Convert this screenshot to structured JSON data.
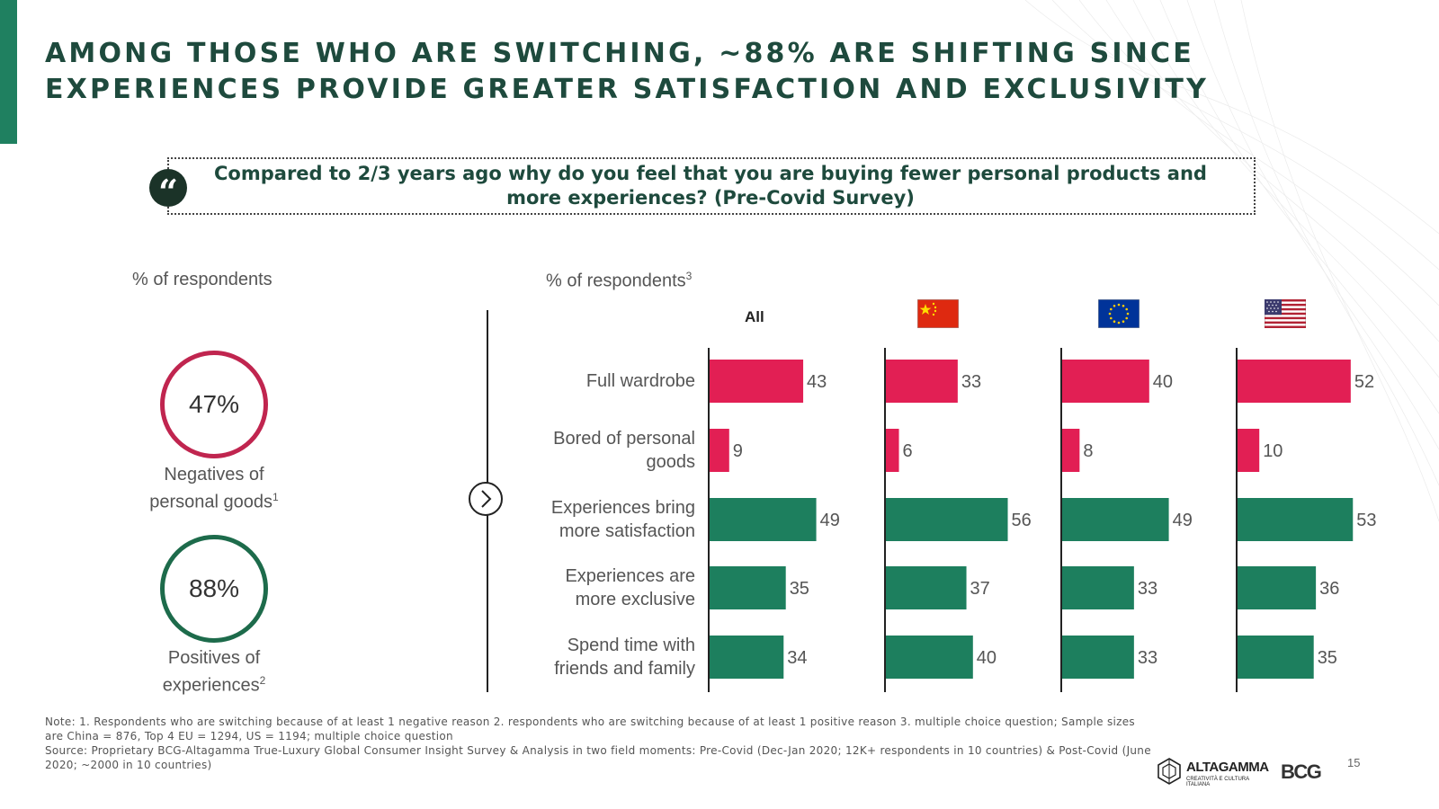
{
  "slide": {
    "title": "AMONG THOSE WHO ARE SWITCHING, ~88% ARE SHIFTING SINCE EXPERIENCES PROVIDE GREATER SATISFACTION AND EXCLUSIVITY",
    "question": "Compared to 2/3 years ago why do you feel that you are buying fewer personal products and more experiences? (Pre-Covid Survey)",
    "quote_glyph": "“",
    "page_number": "15"
  },
  "left_panel": {
    "label": "% of respondents",
    "negatives": {
      "value": "47%",
      "caption_line1": "Negatives of",
      "caption_line2": "personal goods",
      "footnote": "1",
      "color": "#c0254f"
    },
    "positives": {
      "value": "88%",
      "caption_line1": "Positives of",
      "caption_line2": "experiences",
      "footnote": "2",
      "color": "#1d6b4b"
    }
  },
  "right_panel": {
    "label": "% of respondents",
    "label_footnote": "3"
  },
  "chart_data": {
    "type": "bar",
    "orientation": "horizontal",
    "categories": [
      "Full wardrobe",
      "Bored of personal goods",
      "Experiences bring more satisfaction",
      "Experiences are more exclusive",
      "Spend time with friends and family"
    ],
    "category_lines": [
      [
        "Full wardrobe"
      ],
      [
        "Bored of personal",
        "goods"
      ],
      [
        "Experiences bring",
        "more satisfaction"
      ],
      [
        "Experiences are",
        "more exclusive"
      ],
      [
        "Spend time with",
        "friends and family"
      ]
    ],
    "groups": [
      {
        "label": "All",
        "header": "text",
        "values": [
          43,
          9,
          49,
          35,
          34
        ]
      },
      {
        "header": "china-flag-icon",
        "values": [
          33,
          6,
          56,
          37,
          40
        ]
      },
      {
        "header": "eu-flag-icon",
        "values": [
          40,
          8,
          49,
          33,
          33
        ]
      },
      {
        "header": "us-flag-icon",
        "values": [
          52,
          10,
          53,
          36,
          35
        ]
      }
    ],
    "bar_colors": [
      "#e21f54",
      "#e21f54",
      "#1d7f5e",
      "#1d7f5e",
      "#1d7f5e"
    ],
    "xlim": [
      0,
      60
    ],
    "data_labels": true,
    "grid": false
  },
  "notes": {
    "line1": "Note: 1. Respondents who are switching because of at least 1 negative reason 2. respondents who are switching because of at least 1 positive reason 3. multiple choice question; Sample sizes are China = 876, Top 4 EU = 1294, US = 1194; multiple choice question",
    "line2": "Source: Proprietary BCG-Altagamma True-Luxury Global Consumer Insight Survey & Analysis in two field moments: Pre-Covid (Dec-Jan 2020; 12K+ respondents in 10 countries) & Post-Covid (June 2020; ~2000 in 10 countries)"
  },
  "logos": {
    "altagamma": "ALTAGAMMA",
    "altagamma_sub": "CREATIVITÀ E CULTURA ITALIANA",
    "bcg": "BCG"
  }
}
